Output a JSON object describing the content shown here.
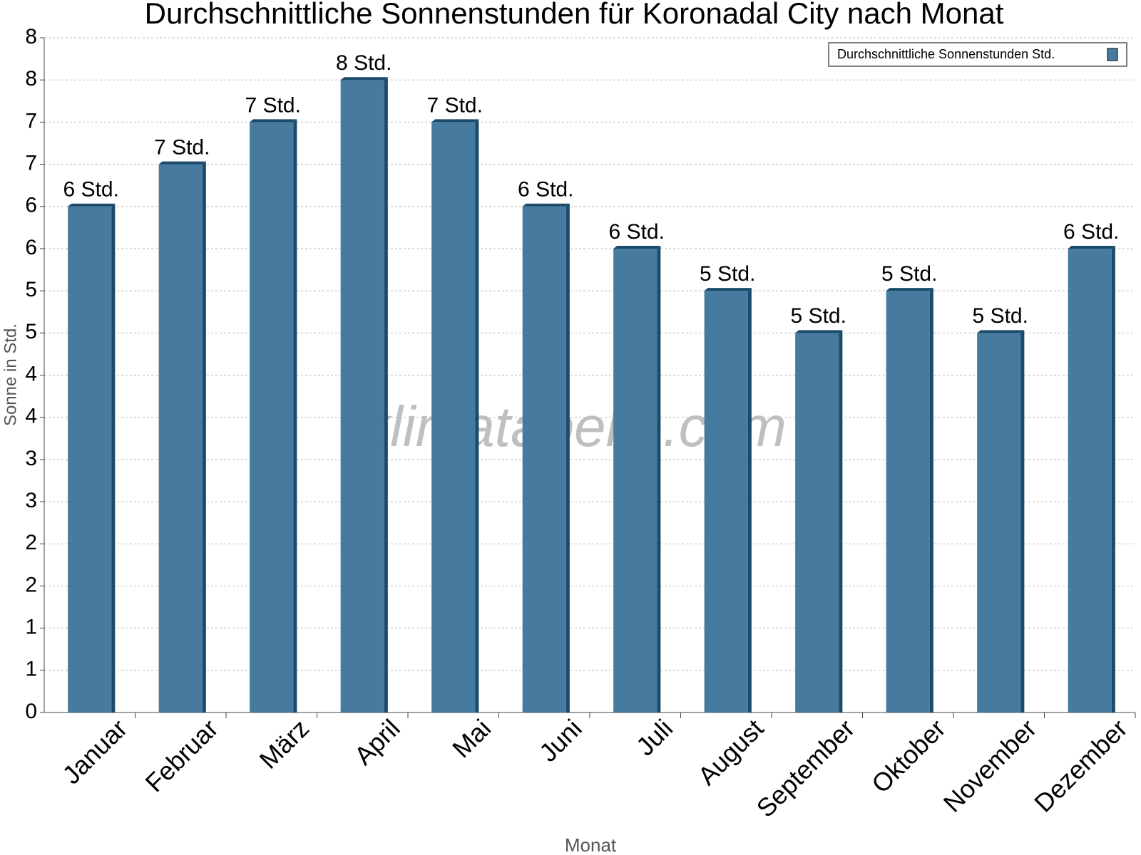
{
  "chart_data": {
    "type": "bar",
    "title": "Durchschnittliche Sonnenstunden für Koronadal City nach Monat",
    "y_label": "Sonne in Std.",
    "x_label": "Monat",
    "watermark": "klimatabelle.com",
    "categories": [
      "Januar",
      "Februar",
      "März",
      "April",
      "Mai",
      "Juni",
      "Juli",
      "August",
      "September",
      "Oktober",
      "November",
      "Dezember"
    ],
    "series": [
      {
        "name": "Durchschnittliche Sonnenstunden Std.",
        "color": "#467a9e",
        "values": [
          6,
          6.5,
          7,
          7.5,
          7,
          6,
          5.5,
          5,
          4.5,
          5,
          4.5,
          5.5
        ],
        "value_labels": [
          "6 Std.",
          "7 Std.",
          "7 Std.",
          "8 Std.",
          "7 Std.",
          "6 Std.",
          "6 Std.",
          "5 Std.",
          "5 Std.",
          "5 Std.",
          "5 Std.",
          "6 Std."
        ]
      }
    ],
    "ylim": [
      0,
      8
    ],
    "yticks": [
      0,
      {
        "value": 0.5,
        "label": "1"
      },
      1,
      {
        "value": 1.5,
        "label": "2"
      },
      2,
      {
        "value": 2.5,
        "label": "3"
      },
      3,
      {
        "value": 3.5,
        "label": "4"
      },
      4,
      {
        "value": 4.5,
        "label": "5"
      },
      5,
      {
        "value": 5.5,
        "label": "6"
      },
      6,
      {
        "value": 6.5,
        "label": "7"
      },
      7,
      {
        "value": 7.5,
        "label": "8"
      },
      8
    ],
    "grid": true,
    "legend": "top-right"
  }
}
